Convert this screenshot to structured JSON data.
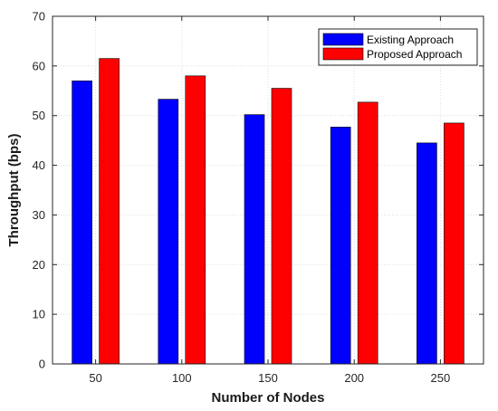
{
  "chart_data": {
    "type": "bar",
    "title": "",
    "xlabel": "Number of Nodes",
    "ylabel": "Throughput (bps)",
    "categories": [
      "50",
      "100",
      "150",
      "200",
      "250"
    ],
    "ylim": [
      0,
      70
    ],
    "yticks": [
      0,
      10,
      20,
      30,
      40,
      50,
      60,
      70
    ],
    "grid": true,
    "legend_position": "top-right",
    "series": [
      {
        "name": "Existing Approach",
        "color": "#0000ff",
        "values": [
          57.0,
          53.3,
          50.2,
          47.7,
          44.5
        ]
      },
      {
        "name": "Proposed Approach",
        "color": "#ff0000",
        "values": [
          61.5,
          58.0,
          55.5,
          52.7,
          48.5
        ]
      }
    ]
  }
}
